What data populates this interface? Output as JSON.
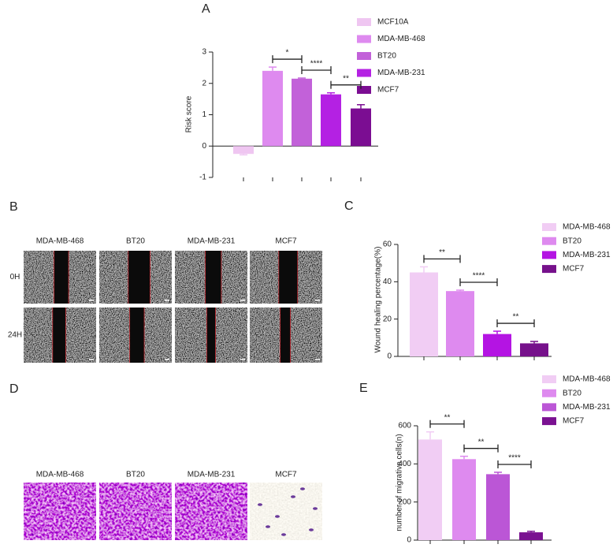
{
  "chart_data": [
    {
      "type": "bar",
      "panel_label": "A",
      "ylabel": "Risk score",
      "categories": [
        "MCF10A",
        "MDA-MB-468",
        "BT20",
        "MDA-MB-231",
        "MCF7"
      ],
      "colors": [
        "#efc6f1",
        "#de8aef",
        "#c261d9",
        "#b421e3",
        "#7b0d92"
      ],
      "values": [
        -0.25,
        2.4,
        2.15,
        1.65,
        1.2
      ],
      "errors": [
        0.03,
        0.12,
        0.02,
        0.05,
        0.12
      ],
      "ylim": [
        -1,
        3
      ],
      "yticks": [
        -1,
        0,
        1,
        2,
        3
      ],
      "significance": [
        "*",
        "****",
        "**"
      ]
    },
    {
      "type": "bar",
      "panel_label": "C",
      "ylabel": "Wound healing percentage(%)",
      "categories": [
        "MDA-MB-468",
        "BT20",
        "MDA-MB-231",
        "MCF7"
      ],
      "colors": [
        "#f1cdf4",
        "#de8aef",
        "#b414e3",
        "#76118b"
      ],
      "values": [
        45,
        35,
        12,
        7
      ],
      "errors": [
        3,
        0.5,
        1.5,
        1
      ],
      "ylim": [
        0,
        60
      ],
      "yticks": [
        0,
        20,
        40,
        60
      ],
      "significance": [
        "**",
        "****",
        "**"
      ]
    },
    {
      "type": "bar",
      "panel_label": "E",
      "ylabel": "number of migrative cells(n)",
      "categories": [
        "MDA-MB-468",
        "BT20",
        "MDA-MB-231",
        "MCF7"
      ],
      "colors": [
        "#f1cdf4",
        "#de8aef",
        "#bb56d6",
        "#7a1191"
      ],
      "values": [
        528,
        425,
        346,
        41
      ],
      "errors": [
        40,
        15,
        10,
        5
      ],
      "ylim": [
        0,
        600
      ],
      "yticks": [
        0,
        200,
        400,
        600
      ],
      "significance": [
        "**",
        "**",
        "****"
      ]
    }
  ],
  "panels": [
    {
      "label": "B",
      "columns": [
        "MDA-MB-468",
        "BT20",
        "MDA-MB-231",
        "MCF7"
      ],
      "rows": [
        "0H",
        "24H"
      ]
    },
    {
      "label": "D",
      "columns": [
        "MDA-MB-468",
        "BT20",
        "MDA-MB-231",
        "MCF7"
      ]
    }
  ]
}
